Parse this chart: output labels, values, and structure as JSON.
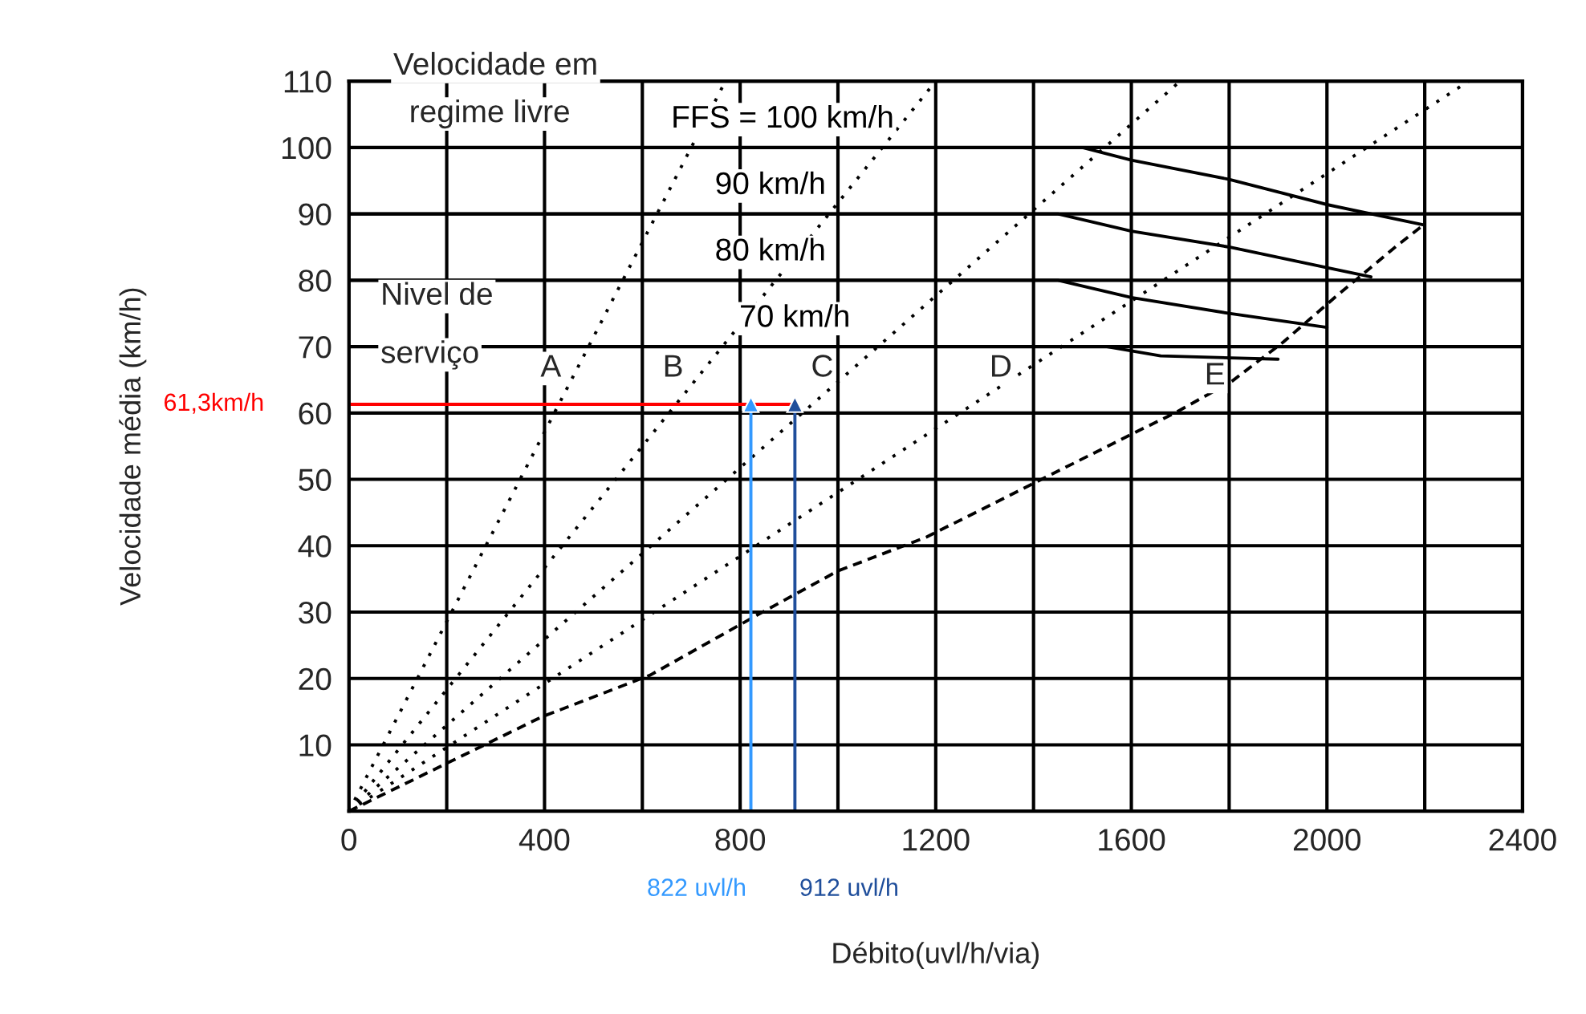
{
  "chart_data": {
    "type": "line",
    "xlabel": "Débito(uvl/h/via)",
    "ylabel": "Velocidade média (km/h)",
    "xlim": [
      0,
      2400
    ],
    "xticks": [
      0,
      {
        "value": 200,
        "label": null
      },
      400,
      {
        "value": 600,
        "label": null
      },
      800,
      {
        "value": 1000,
        "label": null
      },
      1200,
      {
        "value": 1400,
        "label": null
      },
      1600,
      {
        "value": 1800,
        "label": null
      },
      2000,
      {
        "value": 2200,
        "label": null
      },
      2400
    ],
    "ylim": [
      0,
      110
    ],
    "yticks": [
      10,
      20,
      30,
      40,
      50,
      60,
      70,
      80,
      90,
      100,
      110
    ],
    "grid": true,
    "legend": false,
    "series": [
      {
        "name": "FFS = 100 km/h",
        "color": "#000000",
        "line_style": "solid",
        "x": [
          0,
          1500,
          1600,
          1800,
          2000,
          2200
        ],
        "values": [
          100,
          100,
          98.1,
          95.2,
          91.4,
          88.3
        ]
      },
      {
        "name": "90 km/h",
        "color": "#000000",
        "line_style": "solid",
        "x": [
          0,
          1450,
          1600,
          1800,
          2000,
          2090
        ],
        "values": [
          90,
          90,
          87.4,
          85.0,
          81.9,
          80.5
        ]
      },
      {
        "name": "80 km/h",
        "color": "#000000",
        "line_style": "solid",
        "x": [
          0,
          1450,
          1600,
          1800,
          2000
        ],
        "values": [
          80,
          80,
          77.4,
          75.0,
          72.9
        ]
      },
      {
        "name": "70 km/h",
        "color": "#000000",
        "line_style": "solid",
        "x": [
          0,
          1550,
          1660,
          1900
        ],
        "values": [
          70,
          70,
          68.6,
          68.1
        ]
      },
      {
        "color": "#000000",
        "line_style": "dotted",
        "x": [
          0,
          770
        ],
        "values": [
          0,
          110
        ]
      },
      {
        "color": "#000000",
        "line_style": "dotted",
        "x": [
          0,
          1200
        ],
        "values": [
          0,
          110
        ]
      },
      {
        "color": "#000000",
        "line_style": "dotted",
        "x": [
          0,
          1700
        ],
        "values": [
          0,
          110
        ]
      },
      {
        "color": "#000000",
        "line_style": "dotted",
        "x": [
          0,
          2290
        ],
        "values": [
          0,
          110
        ]
      },
      {
        "color": "#000000",
        "line_style": "dashed",
        "x": [
          0,
          197,
          394,
          616,
          841,
          1000,
          1181,
          1403,
          1603,
          1689,
          1806,
          1911,
          2016,
          2143,
          2197
        ],
        "values": [
          0,
          7.1,
          14.2,
          20.5,
          29.8,
          36.2,
          41.3,
          49.5,
          56.9,
          60,
          64.8,
          70.7,
          77.4,
          85.2,
          88.3
        ]
      },
      {
        "name": "61,3km/h",
        "color": "#ff0000",
        "line_style": "solid",
        "x": [
          0,
          912
        ],
        "values": [
          61.3,
          61.3
        ]
      },
      {
        "name": "822 uvl/h",
        "color": "#3399ff",
        "line_style": "solid",
        "marker": "triangle",
        "x": [
          822,
          822
        ],
        "values": [
          0,
          61.3
        ]
      },
      {
        "name": "912 uvl/h",
        "color": "#1f4e9b",
        "line_style": "solid",
        "marker": "triangle",
        "x": [
          912,
          912
        ],
        "values": [
          0,
          61.3
        ]
      }
    ],
    "annotations": [
      "Velocidade em",
      "regime livre",
      "Nivel de",
      "serviço",
      {
        "text": "A",
        "x": 413,
        "y": 66.7
      },
      {
        "text": "B",
        "x": 663,
        "y": 66.7
      },
      {
        "text": "C",
        "x": 968,
        "y": 66.7
      },
      {
        "text": "D",
        "x": 1333,
        "y": 66.7
      },
      {
        "text": "E",
        "x": 1771,
        "y": 65.5
      }
    ]
  }
}
